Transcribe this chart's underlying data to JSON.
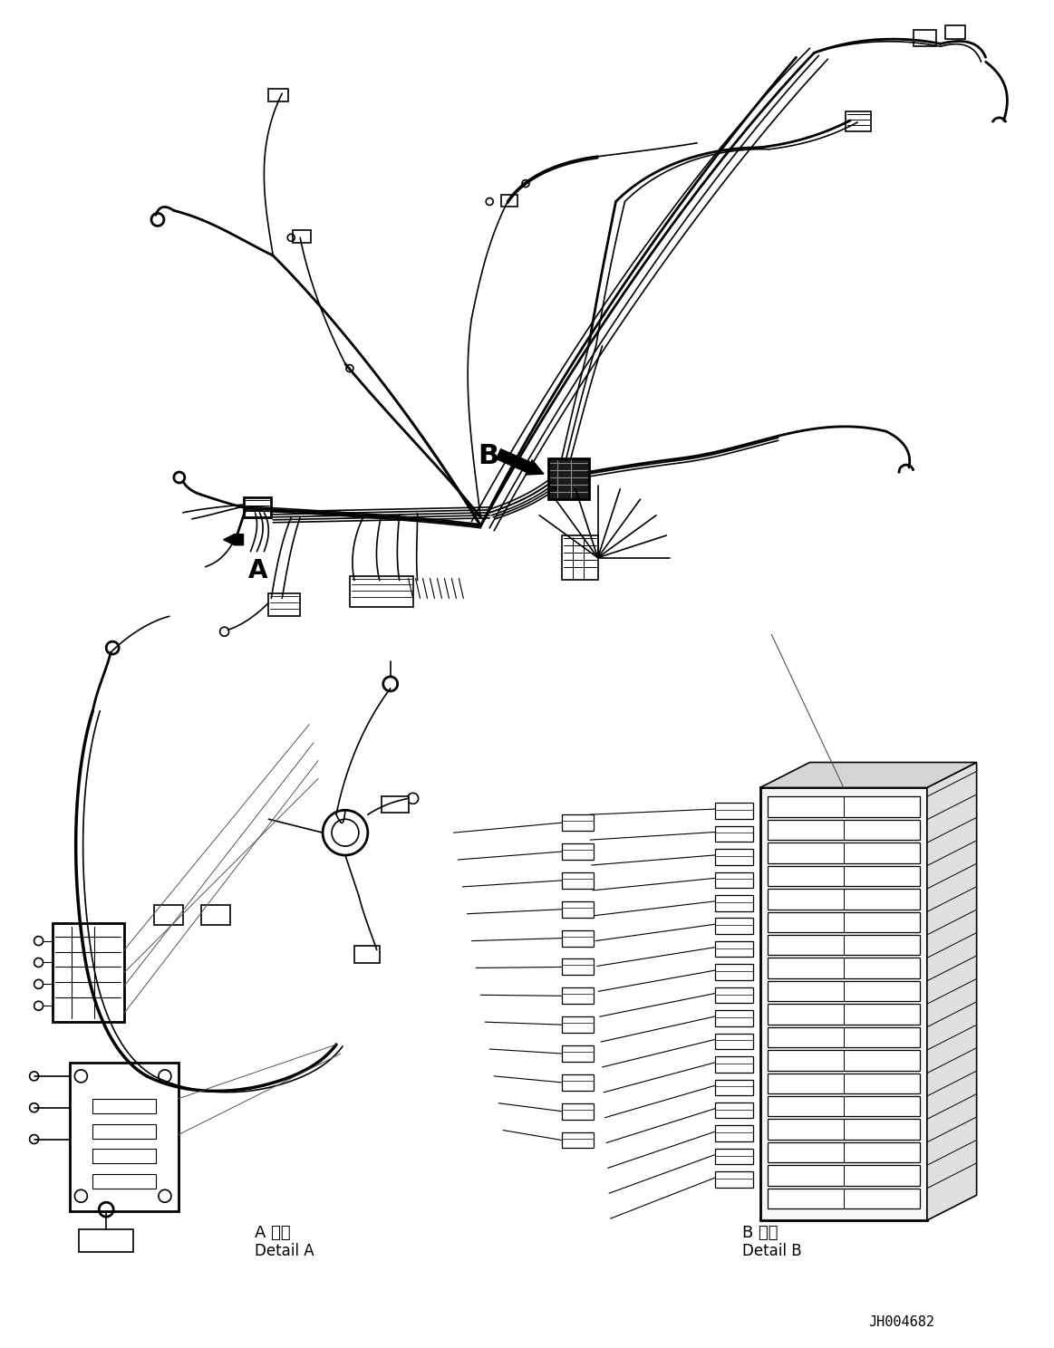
{
  "background_color": "#ffffff",
  "line_color": "#000000",
  "figure_width": 11.63,
  "figure_height": 14.88,
  "dpi": 100,
  "label_A": "A",
  "label_B": "B",
  "detail_a_jp": "A 詳細",
  "detail_a_en": "Detail A",
  "detail_b_jp": "B 詳細",
  "detail_b_en": "Detail B",
  "part_number": "JH004682"
}
